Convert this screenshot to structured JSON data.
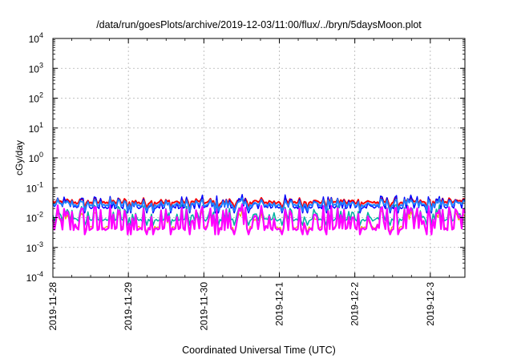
{
  "chart_data": {
    "type": "line",
    "title": "/data/run/goesPlots/archive/2019-12-03/11:00/flux/../bryn/5daysMoon.plot",
    "xlabel": "Coordinated Universal Time (UTC)",
    "ylabel": "cGy/day",
    "yscale": "log",
    "ylim": [
      0.0001,
      10000
    ],
    "y_ticks": [
      {
        "base": "10",
        "exp": "-4"
      },
      {
        "base": "10",
        "exp": "-3"
      },
      {
        "base": "10",
        "exp": "-2"
      },
      {
        "base": "10",
        "exp": "-1"
      },
      {
        "base": "10",
        "exp": "0"
      },
      {
        "base": "10",
        "exp": "1"
      },
      {
        "base": "10",
        "exp": "2"
      },
      {
        "base": "10",
        "exp": "3"
      },
      {
        "base": "10",
        "exp": "4"
      }
    ],
    "x_ticks": [
      "2019-11-28",
      "2019-11-29",
      "2019-11-30",
      "2019-12-1",
      "2019-12-2",
      "2019-12-3"
    ],
    "xlim": [
      "2019-11-28T00:00",
      "2019-12-03T11:00"
    ],
    "grid": true,
    "series": [
      {
        "color": "#ff0000",
        "baseline": 0.032,
        "spike": 0.05,
        "width": 2
      },
      {
        "color": "#00b0a0",
        "baseline": 0.0085,
        "spike": 0.03,
        "width": 1.5
      },
      {
        "color": "#e0b000",
        "baseline": 0.0048,
        "spike": 0.02,
        "width": 1.2
      },
      {
        "color": "#ff00ff",
        "baseline": 0.0042,
        "spike": 0.03,
        "width": 2.2
      },
      {
        "color": "#0000ff",
        "baseline": 0.022,
        "spike": 0.06,
        "width": 1.5
      },
      {
        "color": "#2080ff",
        "baseline": 0.026,
        "spike": 0.045,
        "width": 2
      }
    ]
  }
}
